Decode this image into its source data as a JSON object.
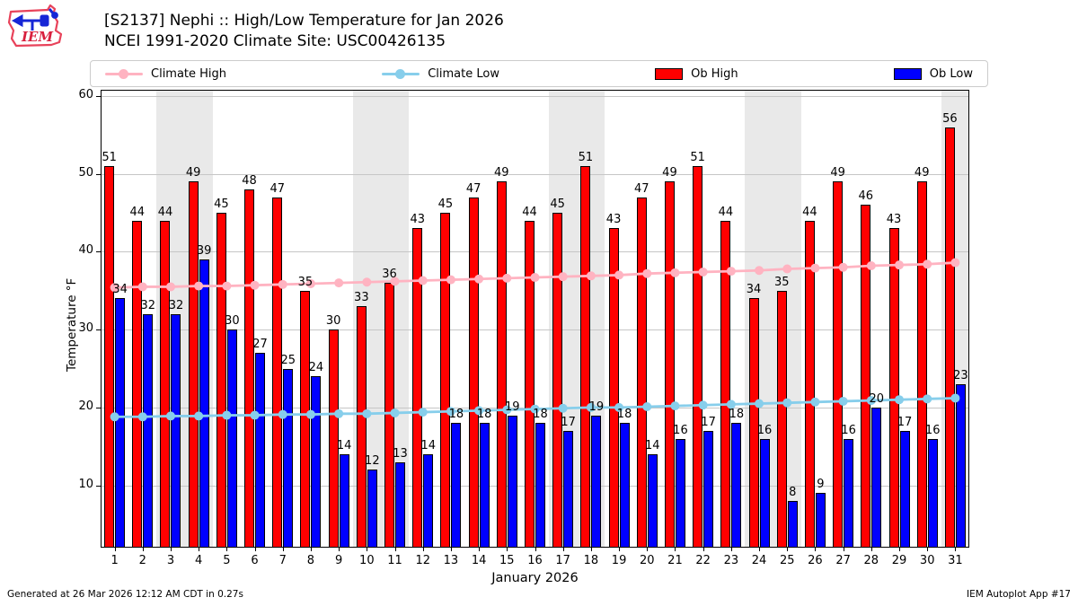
{
  "header": {
    "title_line1": "[S2137] Nephi :: High/Low Temperature for Jan 2026",
    "title_line2": "NCEI 1991-2020 Climate Site: USC00426135",
    "logo_text": "IEM"
  },
  "legend": {
    "items": [
      {
        "label": "Climate High",
        "type": "line",
        "color": "#ffb3c1"
      },
      {
        "label": "Climate Low",
        "type": "line",
        "color": "#87ceeb"
      },
      {
        "label": "Ob High",
        "type": "patch",
        "color": "#ff0000"
      },
      {
        "label": "Ob Low",
        "type": "patch",
        "color": "#0000ff"
      }
    ]
  },
  "footer": {
    "left": "Generated at 26 Mar 2026 12:12 AM CDT in 0.27s",
    "right": "IEM Autoplot App #17"
  },
  "chart_data": {
    "type": "bar",
    "title": "[S2137] Nephi :: High/Low Temperature for Jan 2026",
    "subtitle": "NCEI 1991-2020 Climate Site: USC00426135",
    "xlabel": "January 2026",
    "ylabel": "Temperature °F",
    "ylim": [
      2,
      60.8
    ],
    "yticks": [
      10,
      20,
      30,
      40,
      50,
      60
    ],
    "grid": true,
    "legend_position": "top",
    "weekend_shading_days": [
      3,
      4,
      10,
      11,
      17,
      18,
      24,
      25,
      31
    ],
    "categories": [
      1,
      2,
      3,
      4,
      5,
      6,
      7,
      8,
      9,
      10,
      11,
      12,
      13,
      14,
      15,
      16,
      17,
      18,
      19,
      20,
      21,
      22,
      23,
      24,
      25,
      26,
      27,
      28,
      29,
      30,
      31
    ],
    "series": [
      {
        "name": "Ob High",
        "type": "bar",
        "color": "#ff0000",
        "values": [
          51,
          44,
          44,
          49,
          45,
          48,
          47,
          35,
          30,
          33,
          36,
          43,
          45,
          47,
          49,
          44,
          45,
          51,
          43,
          47,
          49,
          51,
          44,
          34,
          35,
          44,
          49,
          46,
          43,
          49,
          56
        ]
      },
      {
        "name": "Ob Low",
        "type": "bar",
        "color": "#0000ff",
        "values": [
          34,
          32,
          32,
          39,
          30,
          27,
          25,
          24,
          14,
          12,
          13,
          14,
          18,
          18,
          19,
          18,
          17,
          19,
          18,
          14,
          16,
          17,
          18,
          16,
          8,
          9,
          16,
          20,
          17,
          16,
          23
        ]
      },
      {
        "name": "Climate High",
        "type": "line",
        "color": "#ffb3c1",
        "marker": "circle",
        "values": [
          35.4,
          35.5,
          35.5,
          35.6,
          35.6,
          35.7,
          35.8,
          35.9,
          36.0,
          36.1,
          36.2,
          36.3,
          36.4,
          36.5,
          36.6,
          36.7,
          36.8,
          36.9,
          37.0,
          37.2,
          37.3,
          37.4,
          37.5,
          37.6,
          37.8,
          37.9,
          38.0,
          38.2,
          38.3,
          38.4,
          38.6
        ]
      },
      {
        "name": "Climate Low",
        "type": "line",
        "color": "#87ceeb",
        "marker": "circle",
        "values": [
          18.8,
          18.8,
          18.9,
          18.9,
          19.0,
          19.0,
          19.1,
          19.1,
          19.2,
          19.2,
          19.3,
          19.4,
          19.5,
          19.6,
          19.7,
          19.8,
          19.9,
          20.0,
          20.0,
          20.1,
          20.2,
          20.3,
          20.4,
          20.5,
          20.6,
          20.7,
          20.8,
          20.9,
          21.0,
          21.1,
          21.2
        ]
      }
    ]
  }
}
